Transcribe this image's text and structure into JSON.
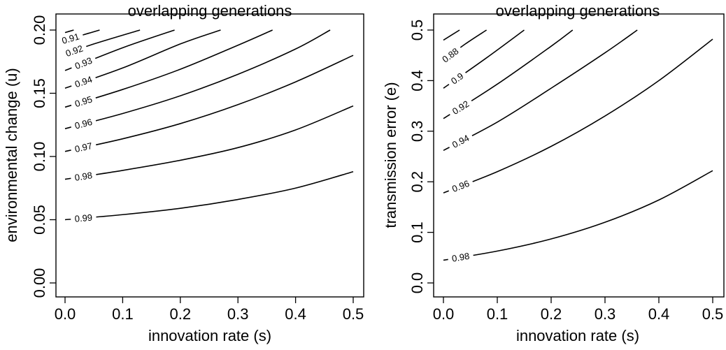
{
  "chart_data": [
    {
      "type": "contour",
      "title": "overlapping generations",
      "xlabel": "innovation rate (s)",
      "ylabel": "environmental change (u)",
      "xlim": [
        0.0,
        0.5
      ],
      "ylim": [
        0.0,
        0.2
      ],
      "x_ticks": [
        "0.0",
        "0.1",
        "0.2",
        "0.3",
        "0.4",
        "0.5"
      ],
      "y_ticks": [
        "0.00",
        "0.05",
        "0.10",
        "0.15",
        "0.20"
      ],
      "contours": [
        {
          "level": "0.99",
          "points": [
            [
              0.0,
              0.05
            ],
            [
              0.1,
              0.054
            ],
            [
              0.2,
              0.059
            ],
            [
              0.3,
              0.066
            ],
            [
              0.4,
              0.075
            ],
            [
              0.5,
              0.088
            ]
          ]
        },
        {
          "level": "0.98",
          "points": [
            [
              0.0,
              0.082
            ],
            [
              0.1,
              0.089
            ],
            [
              0.2,
              0.097
            ],
            [
              0.3,
              0.107
            ],
            [
              0.4,
              0.121
            ],
            [
              0.5,
              0.14
            ]
          ]
        },
        {
          "level": "0.97",
          "points": [
            [
              0.0,
              0.104
            ],
            [
              0.1,
              0.114
            ],
            [
              0.2,
              0.126
            ],
            [
              0.3,
              0.141
            ],
            [
              0.4,
              0.159
            ],
            [
              0.5,
              0.18
            ]
          ]
        },
        {
          "level": "0.96",
          "points": [
            [
              0.0,
              0.122
            ],
            [
              0.1,
              0.134
            ],
            [
              0.2,
              0.148
            ],
            [
              0.3,
              0.165
            ],
            [
              0.4,
              0.185
            ],
            [
              0.46,
              0.2
            ]
          ]
        },
        {
          "level": "0.95",
          "points": [
            [
              0.0,
              0.139
            ],
            [
              0.1,
              0.153
            ],
            [
              0.2,
              0.169
            ],
            [
              0.3,
              0.188
            ],
            [
              0.36,
              0.2
            ]
          ]
        },
        {
          "level": "0.94",
          "points": [
            [
              0.0,
              0.154
            ],
            [
              0.1,
              0.17
            ],
            [
              0.2,
              0.189
            ],
            [
              0.27,
              0.2
            ]
          ]
        },
        {
          "level": "0.93",
          "points": [
            [
              0.0,
              0.168
            ],
            [
              0.1,
              0.186
            ],
            [
              0.19,
              0.2
            ]
          ]
        },
        {
          "level": "0.92",
          "points": [
            [
              0.0,
              0.181
            ],
            [
              0.05,
              0.189
            ],
            [
              0.13,
              0.2
            ]
          ]
        },
        {
          "level": "0.91",
          "points": [
            [
              0.0,
              0.192
            ],
            [
              0.03,
              0.196
            ],
            [
              0.06,
              0.2
            ]
          ]
        },
        {
          "level": "",
          "points": [
            [
              0.0,
              0.198
            ],
            [
              0.015,
              0.2
            ]
          ]
        }
      ]
    },
    {
      "type": "contour",
      "title": "overlapping generations",
      "xlabel": "innovation rate (s)",
      "ylabel": "transmission error (e)",
      "xlim": [
        0.0,
        0.5
      ],
      "ylim": [
        0.0,
        0.5
      ],
      "x_ticks": [
        "0.0",
        "0.1",
        "0.2",
        "0.3",
        "0.4",
        "0.5"
      ],
      "y_ticks": [
        "0.0",
        "0.1",
        "0.2",
        "0.3",
        "0.4",
        "0.5"
      ],
      "contours": [
        {
          "level": "0.98",
          "points": [
            [
              0.0,
              0.045
            ],
            [
              0.1,
              0.063
            ],
            [
              0.2,
              0.087
            ],
            [
              0.3,
              0.12
            ],
            [
              0.4,
              0.164
            ],
            [
              0.5,
              0.222
            ]
          ]
        },
        {
          "level": "0.96",
          "points": [
            [
              0.0,
              0.178
            ],
            [
              0.1,
              0.22
            ],
            [
              0.2,
              0.27
            ],
            [
              0.3,
              0.33
            ],
            [
              0.4,
              0.4
            ],
            [
              0.5,
              0.482
            ]
          ]
        },
        {
          "level": "0.94",
          "points": [
            [
              0.0,
              0.262
            ],
            [
              0.1,
              0.318
            ],
            [
              0.2,
              0.385
            ],
            [
              0.3,
              0.455
            ],
            [
              0.36,
              0.5
            ]
          ]
        },
        {
          "level": "0.92",
          "points": [
            [
              0.0,
              0.325
            ],
            [
              0.1,
              0.393
            ],
            [
              0.2,
              0.468
            ],
            [
              0.24,
              0.5
            ]
          ]
        },
        {
          "level": "0.9",
          "points": [
            [
              0.0,
              0.385
            ],
            [
              0.08,
              0.445
            ],
            [
              0.15,
              0.5
            ]
          ]
        },
        {
          "level": "0.88",
          "points": [
            [
              0.0,
              0.44
            ],
            [
              0.04,
              0.472
            ],
            [
              0.08,
              0.5
            ]
          ]
        },
        {
          "level": "",
          "points": [
            [
              0.0,
              0.48
            ],
            [
              0.03,
              0.5
            ]
          ]
        }
      ]
    }
  ]
}
